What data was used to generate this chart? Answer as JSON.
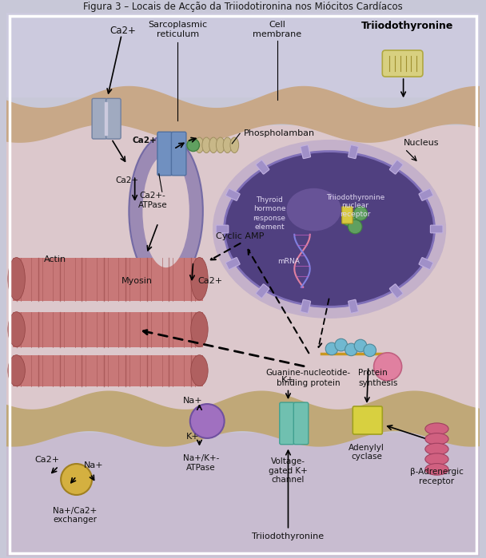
{
  "title": "Figura 3 – Locais de Acção da Triiodotironina nos Miócitos Cardíacos",
  "bg_outer": "#c8c8d8",
  "labels": {
    "triiodothyronine_top": "Triiodothyronine",
    "ca2plus_top": "Ca2+",
    "sarcoplasmic_reticulum": "Sarcoplasmic\nreticulum",
    "cell_membrane": "Cell\nmembrane",
    "phospholamban": "Phospholamban",
    "ca2plus_atpase": "Ca2+-\nATPase",
    "ca2plus_mid1": "Ca2+",
    "ca2plus_mid2": "Ca2+",
    "ca2plus_mid3": "Ca2+",
    "actin": "Actin",
    "myosin": "Myosin",
    "cyclic_amp": "Cyclic AMP",
    "nucleus": "Nucleus",
    "thyroid_hormone": "Thyroid\nhormone\nresponse\nelement",
    "mrna": "mRNA",
    "triiodo_nuclear": "Triiodothyronine\nnuclear\nreceptor",
    "protein_synthesis": "Protein\nsynthesis",
    "guanine": "Guanine-nucleotide-\nbinding protein",
    "adenylyl_cyclase": "Adenylyl\ncyclase",
    "beta_adrenergic": "β-Adrenergic\nreceptor",
    "k_plus_top": "K+",
    "k_plus_bot": "K+",
    "na_plus": "Na+",
    "voltage_gated": "Voltage-\ngated K+\nchannel",
    "na_k_atpase": "Na+/K+-\nATPase",
    "na_ca_exchanger": "Na+/Ca2+\nexchanger",
    "ca2plus_bot": "Ca2+",
    "na_plus_bot": "Na+",
    "triiodo_bottom": "Triiodothyronine"
  },
  "fig_width": 6.08,
  "fig_height": 6.99,
  "dpi": 100
}
